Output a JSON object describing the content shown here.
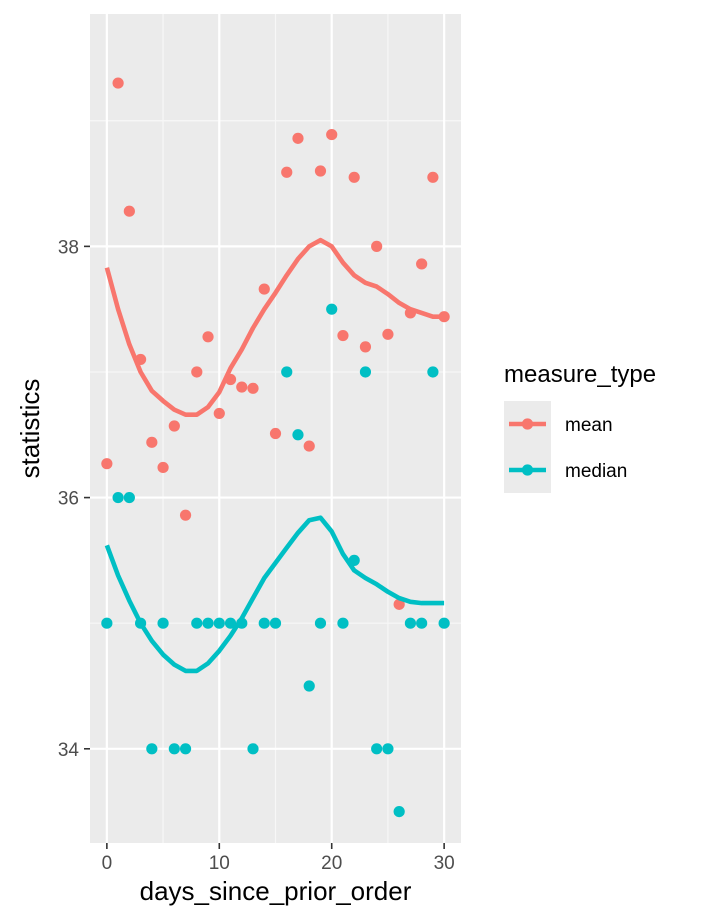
{
  "chart_data": {
    "type": "scatter",
    "xlabel": "days_since_prior_order",
    "ylabel": "statistics",
    "xlim": [
      -1.5,
      31.5
    ],
    "ylim": [
      33.25,
      39.85
    ],
    "x_ticks": [
      0,
      10,
      20,
      30
    ],
    "x_tick_labels": [
      "0",
      "10",
      "20",
      "30"
    ],
    "y_ticks": [
      34,
      36,
      38
    ],
    "y_tick_labels": [
      "34",
      "36",
      "38"
    ],
    "grid": true,
    "legend_title": "measure_type",
    "legend_position": "right",
    "series": [
      {
        "name": "mean",
        "color": "#F8766D",
        "points": [
          [
            0,
            36.27
          ],
          [
            1,
            39.3
          ],
          [
            2,
            38.28
          ],
          [
            3,
            37.1
          ],
          [
            4,
            36.44
          ],
          [
            5,
            36.24
          ],
          [
            6,
            36.57
          ],
          [
            7,
            35.86
          ],
          [
            8,
            37.0
          ],
          [
            9,
            37.28
          ],
          [
            10,
            36.67
          ],
          [
            11,
            36.94
          ],
          [
            12,
            36.88
          ],
          [
            13,
            36.87
          ],
          [
            14,
            37.66
          ],
          [
            15,
            36.51
          ],
          [
            16,
            38.59
          ],
          [
            17,
            38.86
          ],
          [
            18,
            36.41
          ],
          [
            19,
            38.6
          ],
          [
            20,
            38.89
          ],
          [
            21,
            37.29
          ],
          [
            22,
            38.55
          ],
          [
            23,
            37.2
          ],
          [
            24,
            38.0
          ],
          [
            25,
            37.3
          ],
          [
            26,
            35.15
          ],
          [
            27,
            37.47
          ],
          [
            28,
            37.86
          ],
          [
            29,
            38.55
          ],
          [
            30,
            37.44
          ]
        ],
        "smooth": [
          [
            0,
            37.83
          ],
          [
            1,
            37.5
          ],
          [
            2,
            37.22
          ],
          [
            3,
            37.0
          ],
          [
            4,
            36.85
          ],
          [
            5,
            36.77
          ],
          [
            6,
            36.7
          ],
          [
            7,
            36.66
          ],
          [
            8,
            36.66
          ],
          [
            9,
            36.72
          ],
          [
            10,
            36.84
          ],
          [
            11,
            37.03
          ],
          [
            12,
            37.18
          ],
          [
            13,
            37.35
          ],
          [
            14,
            37.5
          ],
          [
            15,
            37.63
          ],
          [
            16,
            37.77
          ],
          [
            17,
            37.9
          ],
          [
            18,
            38.0
          ],
          [
            19,
            38.05
          ],
          [
            20,
            38.0
          ],
          [
            21,
            37.87
          ],
          [
            22,
            37.77
          ],
          [
            23,
            37.71
          ],
          [
            24,
            37.68
          ],
          [
            25,
            37.62
          ],
          [
            26,
            37.55
          ],
          [
            27,
            37.5
          ],
          [
            28,
            37.47
          ],
          [
            29,
            37.44
          ],
          [
            30,
            37.44
          ]
        ]
      },
      {
        "name": "median",
        "color": "#00BFC4",
        "points": [
          [
            0,
            35
          ],
          [
            1,
            36
          ],
          [
            2,
            36
          ],
          [
            3,
            35
          ],
          [
            4,
            34
          ],
          [
            5,
            35
          ],
          [
            6,
            34
          ],
          [
            7,
            34
          ],
          [
            8,
            35
          ],
          [
            9,
            35
          ],
          [
            10,
            35
          ],
          [
            11,
            35
          ],
          [
            12,
            35
          ],
          [
            13,
            34
          ],
          [
            14,
            35
          ],
          [
            15,
            35
          ],
          [
            16,
            37
          ],
          [
            17,
            36.5
          ],
          [
            18,
            34.5
          ],
          [
            19,
            35
          ],
          [
            20,
            37.5
          ],
          [
            21,
            35
          ],
          [
            22,
            35.5
          ],
          [
            23,
            37
          ],
          [
            24,
            34
          ],
          [
            25,
            34
          ],
          [
            26,
            33.5
          ],
          [
            27,
            35
          ],
          [
            28,
            35
          ],
          [
            29,
            37
          ],
          [
            30,
            35
          ]
        ],
        "smooth": [
          [
            0,
            35.62
          ],
          [
            1,
            35.38
          ],
          [
            2,
            35.18
          ],
          [
            3,
            35.0
          ],
          [
            4,
            34.86
          ],
          [
            5,
            34.75
          ],
          [
            6,
            34.67
          ],
          [
            7,
            34.62
          ],
          [
            8,
            34.62
          ],
          [
            9,
            34.68
          ],
          [
            10,
            34.78
          ],
          [
            11,
            34.9
          ],
          [
            12,
            35.04
          ],
          [
            13,
            35.2
          ],
          [
            14,
            35.36
          ],
          [
            15,
            35.48
          ],
          [
            16,
            35.6
          ],
          [
            17,
            35.72
          ],
          [
            18,
            35.82
          ],
          [
            19,
            35.84
          ],
          [
            20,
            35.73
          ],
          [
            21,
            35.55
          ],
          [
            22,
            35.42
          ],
          [
            23,
            35.36
          ],
          [
            24,
            35.31
          ],
          [
            25,
            35.25
          ],
          [
            26,
            35.2
          ],
          [
            27,
            35.17
          ],
          [
            28,
            35.16
          ],
          [
            29,
            35.16
          ],
          [
            30,
            35.16
          ]
        ]
      }
    ]
  }
}
